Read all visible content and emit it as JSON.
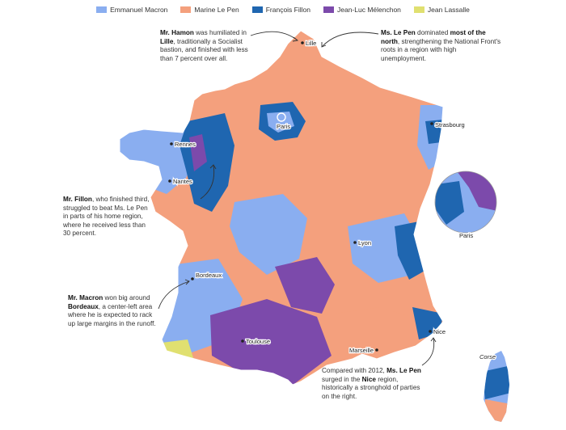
{
  "legend": [
    {
      "label": "Emmanuel Macron",
      "color": "#8aaef0"
    },
    {
      "label": "Marine Le Pen",
      "color": "#f4a07d"
    },
    {
      "label": "François Fillon",
      "color": "#1f66b0"
    },
    {
      "label": "Jean-Luc Mélenchon",
      "color": "#7c4aab"
    },
    {
      "label": "Jean Lassalle",
      "color": "#e0e070"
    }
  ],
  "cities": {
    "lille": "Lille",
    "paris": "Paris",
    "strasbourg": "Strasbourg",
    "rennes": "Rennes",
    "nantes": "Nantes",
    "lyon": "Lyon",
    "bordeaux": "Bordeaux",
    "toulouse": "Toulouse",
    "marseille": "Marseille",
    "nice": "Nice",
    "paris_inset": "Paris",
    "corse": "Corse"
  },
  "annotations": {
    "hamon": {
      "bold1": "Mr. Hamon",
      "text1": " was humiliated in ",
      "bold2": "Lille",
      "text2": ", traditionally a Socialist bastion, and finished with less than 7 percent over all."
    },
    "lepen_north": {
      "bold1": "Ms. Le Pen",
      "text1": " dominated ",
      "bold2": "most of the north",
      "text2": ", strengthening the National Front's roots in a region with high unemployment."
    },
    "fillon": {
      "bold1": "Mr. Fillon",
      "text1": ", who finished third, struggled to beat Ms. Le Pen in parts of his home region, where he received less than 30 percent."
    },
    "macron": {
      "bold1": "Mr. Macron",
      "text1": " won big around ",
      "bold2": "Bordeaux",
      "text2": ", a center-left area where he is expected to rack up large margins in the runoff."
    },
    "lepen_nice": {
      "text0": "Compared with 2012, ",
      "bold1": "Ms. Le Pen",
      "text1": " surged in the ",
      "bold2": "Nice",
      "text2": " region, historically a stronghold of parties on the right."
    }
  }
}
